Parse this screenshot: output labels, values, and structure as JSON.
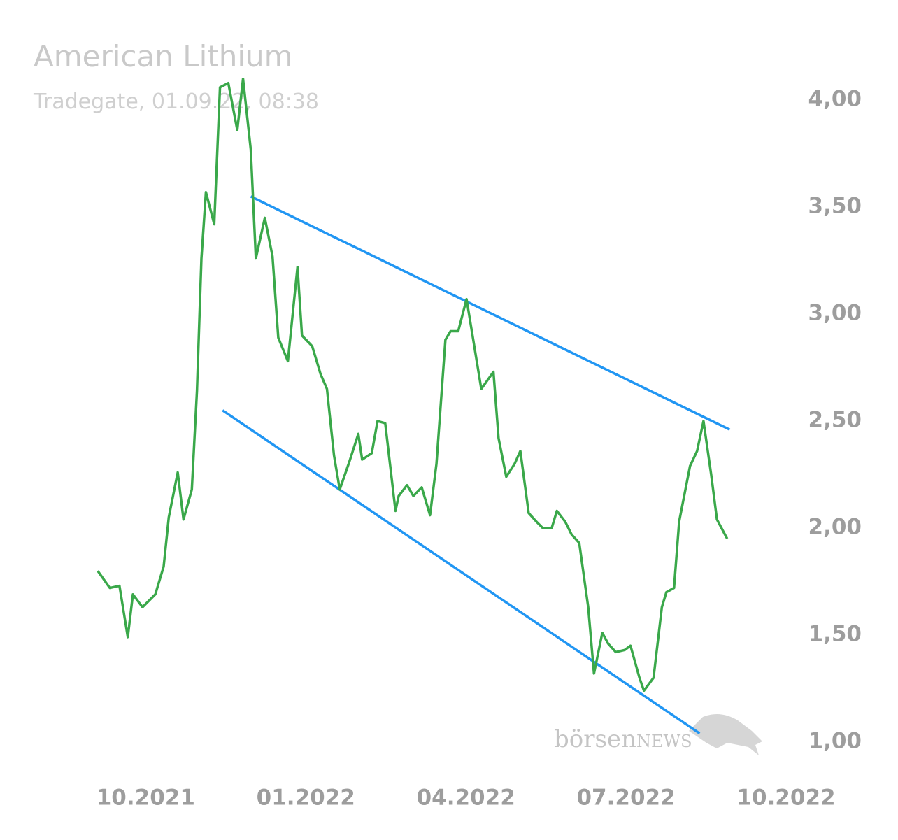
{
  "chart_data": {
    "type": "line",
    "title": "American Lithium",
    "subtitle": "Tradegate, 01.09.22, 08:38",
    "watermark": [
      "börsen",
      "NEWS"
    ],
    "xlim": [
      2021.6,
      2022.75
    ],
    "ylim": [
      0.8,
      4.2
    ],
    "xticks": [
      {
        "value": 2021.75,
        "label": "10.2021"
      },
      {
        "value": 2022.0,
        "label": "01.2022"
      },
      {
        "value": 2022.25,
        "label": "04.2022"
      },
      {
        "value": 2022.5,
        "label": "07.2022"
      },
      {
        "value": 2022.75,
        "label": "10.2022"
      }
    ],
    "yticks": [
      {
        "value": 1,
        "label": "1,00"
      },
      {
        "value": 1.5,
        "label": "1,50"
      },
      {
        "value": 2,
        "label": "2,00"
      },
      {
        "value": 2.5,
        "label": "2,50"
      },
      {
        "value": 3,
        "label": "3,00"
      },
      {
        "value": 3.5,
        "label": "3,50"
      },
      {
        "value": 4,
        "label": "4,00"
      }
    ],
    "series": [
      {
        "color": "#3aa84a",
        "x": [
          2021.675,
          2021.694,
          2021.709,
          2021.722,
          2021.73,
          2021.745,
          2021.765,
          2021.778,
          2021.786,
          2021.8,
          2021.809,
          2021.822,
          2021.83,
          2021.837,
          2021.844,
          2021.857,
          2021.866,
          2021.879,
          2021.893,
          2021.902,
          2021.914,
          2021.922,
          2021.936,
          2021.948,
          2021.957,
          2021.972,
          2021.987,
          2021.994,
          2022.01,
          2022.023,
          2022.033,
          2022.044,
          2022.053,
          2022.068,
          2022.082,
          2022.088,
          2022.103,
          2022.112,
          2022.124,
          2022.14,
          2022.145,
          2022.158,
          2022.168,
          2022.181,
          2022.194,
          2022.204,
          2022.218,
          2022.226,
          2022.238,
          2022.251,
          2022.262,
          2022.274,
          2022.293,
          2022.301,
          2022.313,
          2022.326,
          2022.335,
          2022.348,
          2022.36,
          2022.37,
          2022.384,
          2022.392,
          2022.405,
          2022.415,
          2022.427,
          2022.441,
          2022.45,
          2022.463,
          2022.472,
          2022.484,
          2022.498,
          2022.507,
          2022.521,
          2022.528,
          2022.543,
          2022.556,
          2022.563,
          2022.575,
          2022.583,
          2022.6,
          2022.611,
          2022.621,
          2022.633,
          2022.642,
          2022.658
        ],
        "values": [
          1.8,
          1.72,
          1.73,
          1.49,
          1.69,
          1.63,
          1.69,
          1.82,
          2.05,
          2.26,
          2.04,
          2.18,
          2.64,
          3.26,
          3.57,
          3.42,
          4.06,
          4.08,
          3.86,
          4.1,
          3.77,
          3.26,
          3.45,
          3.27,
          2.89,
          2.78,
          3.22,
          2.9,
          2.85,
          2.72,
          2.65,
          2.34,
          2.18,
          2.31,
          2.44,
          2.32,
          2.35,
          2.5,
          2.49,
          2.08,
          2.15,
          2.2,
          2.15,
          2.19,
          2.06,
          2.3,
          2.88,
          2.92,
          2.92,
          3.07,
          2.87,
          2.65,
          2.73,
          2.42,
          2.24,
          2.3,
          2.36,
          2.07,
          2.03,
          2.0,
          2.0,
          2.08,
          2.03,
          1.97,
          1.93,
          1.63,
          1.32,
          1.51,
          1.46,
          1.42,
          1.43,
          1.45,
          1.3,
          1.24,
          1.3,
          1.63,
          1.7,
          1.72,
          2.03,
          2.29,
          2.36,
          2.5,
          2.25,
          2.04,
          1.95
        ]
      }
    ],
    "trendlines": [
      {
        "color": "#2196f3",
        "x": [
          2021.914,
          2022.662
        ],
        "values": [
          3.55,
          2.46
        ]
      },
      {
        "color": "#2196f3",
        "x": [
          2021.87,
          2022.615
        ],
        "values": [
          2.55,
          1.04
        ]
      }
    ]
  }
}
